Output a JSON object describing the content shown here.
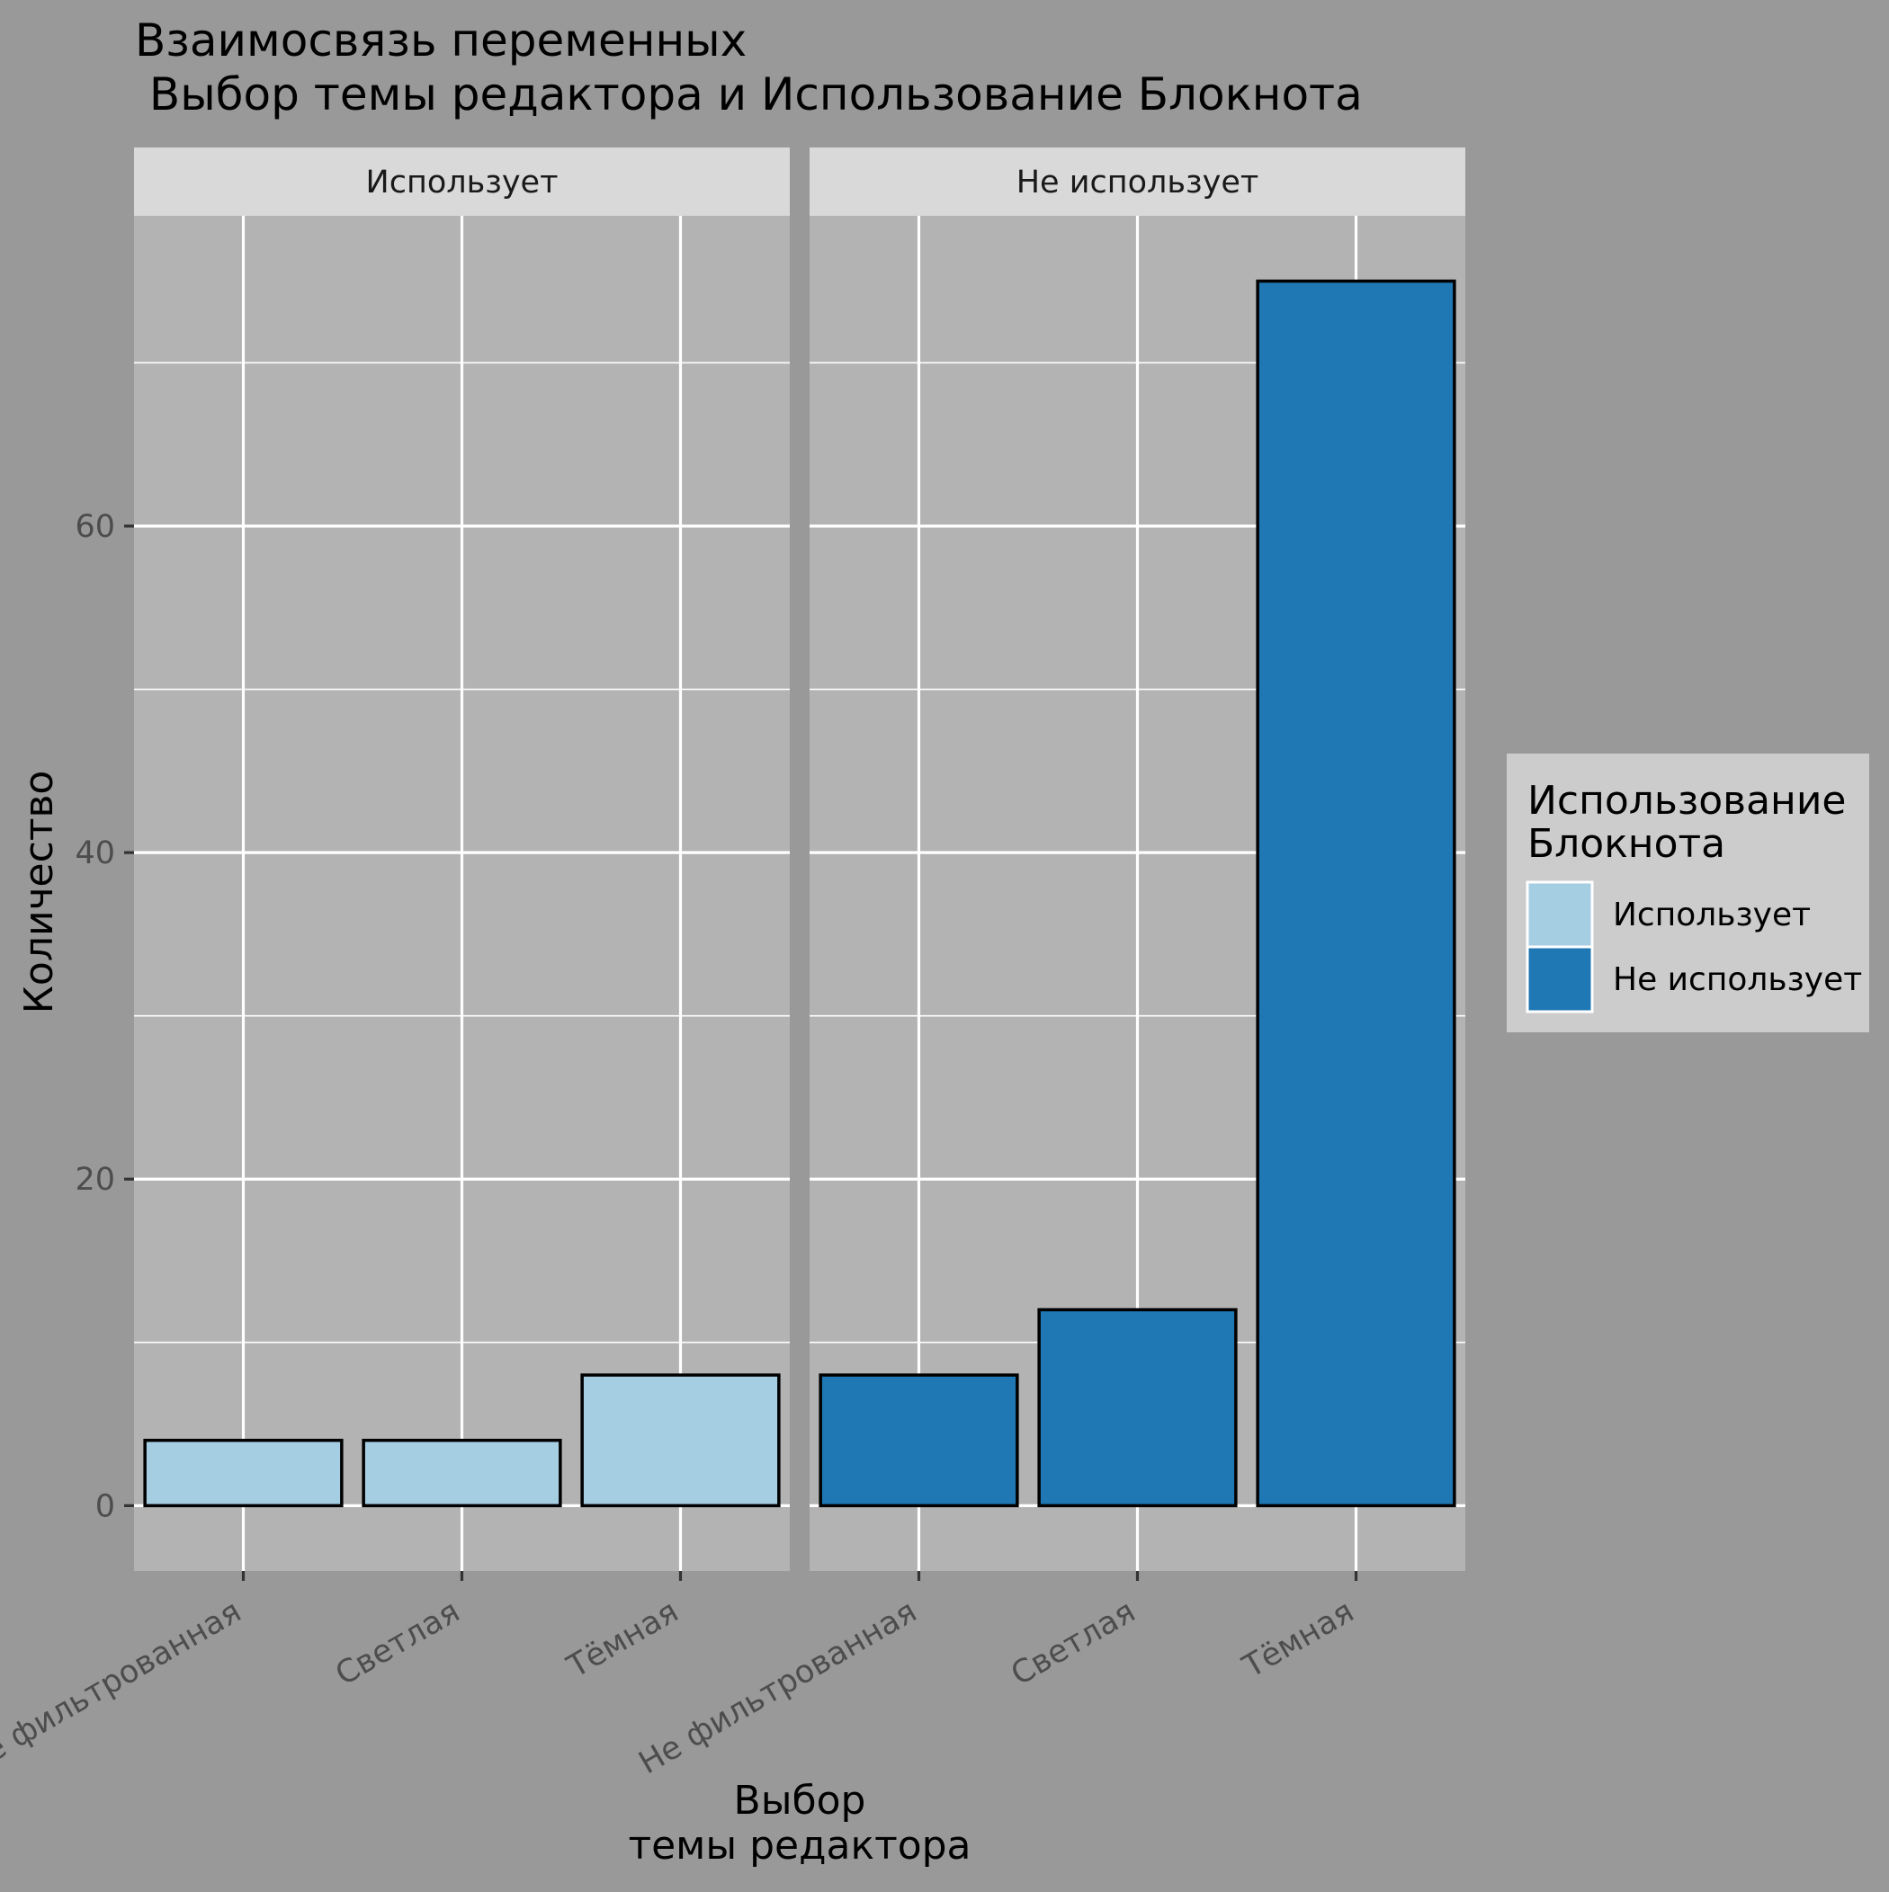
{
  "chart_data": {
    "type": "bar",
    "title_lines": [
      "Взаимосвязь переменных",
      " Выбор темы редактора и Использование Блокнота"
    ],
    "xlabel_lines": [
      "Выбор",
      "темы редактора"
    ],
    "ylabel": "Количество",
    "categories": [
      "Не фильтрованная",
      "Светлая",
      "Тёмная"
    ],
    "ylim": [
      -4,
      79
    ],
    "yticks": [
      0,
      20,
      40,
      60
    ],
    "grid": true,
    "legend": {
      "title_lines": [
        "Использование",
        "Блокнота"
      ],
      "position": "right",
      "entries": [
        {
          "label": "Использует",
          "color": "#a6cee3"
        },
        {
          "label": "Не использует",
          "color": "#1f78b4"
        }
      ]
    },
    "facets": [
      {
        "label": "Использует",
        "color": "#a6cee3",
        "values": [
          4,
          4,
          8
        ]
      },
      {
        "label": "Не использует",
        "color": "#1f78b4",
        "values": [
          8,
          12,
          75
        ]
      }
    ]
  }
}
